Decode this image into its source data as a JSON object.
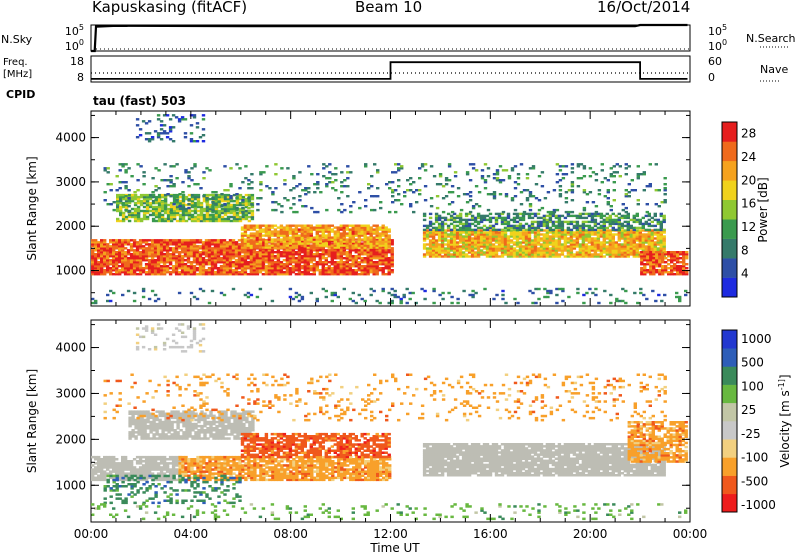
{
  "header": {
    "station": "Kapuskasing (fitACF)",
    "beam": "Beam 10",
    "date": "16/Oct/2014"
  },
  "colors": {
    "power": [
      "#1e2be0",
      "#2e4fa6",
      "#357a6a",
      "#3a9a4e",
      "#8fc832",
      "#f0d21c",
      "#f5a21e",
      "#ef6a1c",
      "#e61e1e"
    ],
    "velocity": [
      "#ee1c1c",
      "#f0581c",
      "#f8a02a",
      "#f2d080",
      "#c8c8c8",
      "#c2c6a6",
      "#68b840",
      "#3a8a5a",
      "#2e5eb8",
      "#2238d0"
    ],
    "ground_scatter": "#bdbdb4"
  },
  "chart_data": [
    {
      "type": "line",
      "panel": "noise",
      "ylabel_left": "N.Sky",
      "ylabel_right": "N.Search",
      "yticks_left": [
        "10^5",
        "10^0"
      ],
      "yticks_right": [
        "10^5",
        "10^0"
      ],
      "y_scale": "log",
      "ylim": [
        1,
        100000
      ],
      "series": [
        {
          "x": [
            0.0,
            0.15,
            0.2,
            1.0,
            6.0,
            12.0,
            16.0,
            20.0,
            21.8,
            22.0,
            23.9
          ],
          "y": [
            1,
            1,
            50000,
            70000,
            60000,
            60000,
            60000,
            60000,
            60000,
            100000,
            100000
          ]
        }
      ]
    },
    {
      "type": "line",
      "panel": "frequency",
      "ylabel_left": "Freq. [MHz]",
      "ylabel_right": "Nave",
      "yticks_left": [
        "18",
        "8"
      ],
      "yticks_right": [
        "60",
        "0"
      ],
      "ylim": [
        8,
        18
      ],
      "series": [
        {
          "x": [
            0.0,
            12.0,
            12.0,
            22.0,
            22.0,
            23.9
          ],
          "y": [
            9.2,
            9.2,
            15.6,
            15.6,
            9.2,
            9.2
          ]
        }
      ],
      "cpid_label": "CPID",
      "cpid_value": "tau (fast) 503"
    },
    {
      "type": "heatmap",
      "panel": "power",
      "ylabel": "Slant Range [km]",
      "yticks": [
        "1000",
        "2000",
        "3000",
        "4000"
      ],
      "ylim": [
        200,
        4600
      ],
      "xlim": [
        0,
        24
      ],
      "colorbar_label": "Power [dB]",
      "colorbar_ticks": [
        "4",
        "8",
        "12",
        "16",
        "20",
        "24",
        "28"
      ],
      "colorbar_range": [
        0,
        30
      ],
      "bands": [
        {
          "t0": 0.0,
          "t1": 12.0,
          "r0": 900,
          "r1": 1700,
          "level": 26,
          "density": 0.9
        },
        {
          "t0": 1.0,
          "t1": 6.5,
          "r0": 2100,
          "r1": 2700,
          "level": 14,
          "density": 0.8
        },
        {
          "t0": 6.0,
          "t1": 11.9,
          "r0": 1500,
          "r1": 2000,
          "level": 22,
          "density": 0.85
        },
        {
          "t0": 13.3,
          "t1": 23.0,
          "r0": 1300,
          "r1": 1900,
          "level": 20,
          "density": 0.9
        },
        {
          "t0": 13.3,
          "t1": 23.0,
          "r0": 1900,
          "r1": 2300,
          "level": 10,
          "density": 0.6
        },
        {
          "t0": 22.0,
          "t1": 23.9,
          "r0": 900,
          "r1": 1400,
          "level": 26,
          "density": 0.85
        },
        {
          "t0": 0.5,
          "t1": 23.0,
          "r0": 2300,
          "r1": 3400,
          "level": 9,
          "density": 0.12
        },
        {
          "t0": 1.8,
          "t1": 4.5,
          "r0": 3900,
          "r1": 4500,
          "level": 6,
          "density": 0.2
        },
        {
          "t0": 0.0,
          "t1": 24.0,
          "r0": 250,
          "r1": 600,
          "level": 8,
          "density": 0.12
        }
      ]
    },
    {
      "type": "heatmap",
      "panel": "velocity",
      "ylabel": "Slant Range [km]",
      "yticks": [
        "1000",
        "2000",
        "3000",
        "4000"
      ],
      "ylim": [
        200,
        4600
      ],
      "xlim": [
        0,
        24
      ],
      "colorbar_label": "Velocity [m s^-1]",
      "colorbar_ticks": [
        "1000",
        "500",
        "100",
        "25",
        "-25",
        "-100",
        "-500",
        "-1000"
      ],
      "xticks": [
        "00:00",
        "04:00",
        "08:00",
        "12:00",
        "16:00",
        "20:00",
        "00:00"
      ],
      "xlabel": "Time UT",
      "bands": [
        {
          "t0": 0.0,
          "t1": 3.5,
          "r0": 1100,
          "r1": 1600,
          "class": 5,
          "density": 0.8
        },
        {
          "t0": 1.5,
          "t1": 6.5,
          "r0": 2000,
          "r1": 2600,
          "class": 5,
          "density": 0.8
        },
        {
          "t0": 3.5,
          "t1": 11.9,
          "r0": 1100,
          "r1": 1600,
          "class": 2,
          "density": 0.85
        },
        {
          "t0": 6.0,
          "t1": 11.9,
          "r0": 1600,
          "r1": 2100,
          "class": 1,
          "density": 0.7
        },
        {
          "t0": 13.3,
          "t1": 23.0,
          "r0": 1200,
          "r1": 1900,
          "class": 5,
          "density": 0.9
        },
        {
          "t0": 21.5,
          "t1": 23.9,
          "r0": 1500,
          "r1": 2400,
          "class": 2,
          "density": 0.75
        },
        {
          "t0": 0.5,
          "t1": 6.0,
          "r0": 600,
          "r1": 1200,
          "class": 7,
          "density": 0.3
        },
        {
          "t0": 0.5,
          "t1": 23.0,
          "r0": 2400,
          "r1": 3400,
          "class": 2,
          "density": 0.12
        },
        {
          "t0": 1.8,
          "t1": 4.5,
          "r0": 3900,
          "r1": 4500,
          "class": 4,
          "density": 0.2
        },
        {
          "t0": 0.0,
          "t1": 24.0,
          "r0": 250,
          "r1": 600,
          "class": 6,
          "density": 0.12
        }
      ]
    }
  ]
}
